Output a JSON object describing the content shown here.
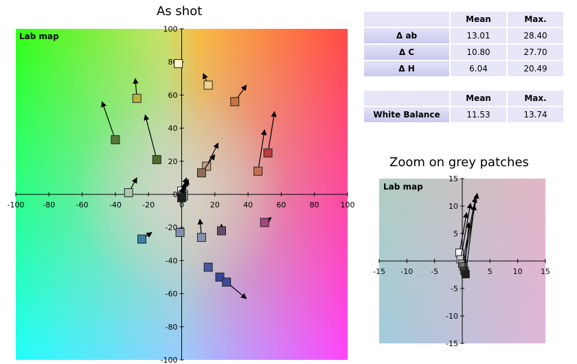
{
  "charts": {
    "main_title": "As shot",
    "zoom_title": "Zoom on grey patches"
  },
  "error_table": {
    "headers": [
      "",
      "Mean",
      "Max."
    ],
    "rows": [
      {
        "label": "Δ ab",
        "mean": "13.01",
        "max": "28.40"
      },
      {
        "label": "Δ C",
        "mean": "10.80",
        "max": "27.70"
      },
      {
        "label": "Δ H",
        "mean": "6.04",
        "max": "20.49"
      }
    ]
  },
  "wb_table": {
    "headers": [
      "",
      "Mean",
      "Max."
    ],
    "rows": [
      {
        "label": "White Balance",
        "mean": "11.53",
        "max": "13.74"
      }
    ]
  },
  "chart_data": [
    {
      "type": "scatter",
      "title": "As shot",
      "plot_label": "Lab map",
      "xlim": [
        -100,
        100
      ],
      "ylim": [
        -100,
        100
      ],
      "xticks": [
        -100,
        -80,
        -60,
        -40,
        -20,
        0,
        20,
        40,
        60,
        80,
        100
      ],
      "yticks": [
        -100,
        -80,
        -60,
        -40,
        -20,
        0,
        20,
        40,
        60,
        80,
        100
      ],
      "patches": [
        {
          "x": -2,
          "y": 79,
          "tx": -2,
          "ty": 79,
          "color": "#fff3c8"
        },
        {
          "x": 16,
          "y": 66,
          "tx": 13,
          "ty": 73,
          "color": "#f0d288"
        },
        {
          "x": -27,
          "y": 58,
          "tx": -28,
          "ty": 70,
          "color": "#b8b440"
        },
        {
          "x": 32,
          "y": 56,
          "tx": 39,
          "ty": 66,
          "color": "#c8743c"
        },
        {
          "x": -40,
          "y": 33,
          "tx": -48,
          "ty": 56,
          "color": "#587838"
        },
        {
          "x": -15,
          "y": 21,
          "tx": -22,
          "ty": 48,
          "color": "#4f6a2c"
        },
        {
          "x": 52,
          "y": 25,
          "tx": 56,
          "ty": 50,
          "color": "#b83e3c"
        },
        {
          "x": 46,
          "y": 14,
          "tx": 50,
          "ty": 39,
          "color": "#c47050"
        },
        {
          "x": 15,
          "y": 17,
          "tx": 22,
          "ty": 31,
          "color": "#c8a088"
        },
        {
          "x": 12,
          "y": 13,
          "tx": 20,
          "ty": 24,
          "color": "#906c54"
        },
        {
          "x": -32,
          "y": 1,
          "tx": -27,
          "ty": 10,
          "color": "#a8c8b0"
        },
        {
          "x": 0,
          "y": 2,
          "tx": 3,
          "ty": 10,
          "color": "#f8f8f8"
        },
        {
          "x": 1,
          "y": 0,
          "tx": 4,
          "ty": 9,
          "color": "#c8c8c8"
        },
        {
          "x": 1,
          "y": -1,
          "tx": 3,
          "ty": 8,
          "color": "#a0a0a0"
        },
        {
          "x": 0,
          "y": -1,
          "tx": 2,
          "ty": 7,
          "color": "#787878"
        },
        {
          "x": 0,
          "y": -2,
          "tx": 1,
          "ty": 5,
          "color": "#3c3c3c"
        },
        {
          "x": 0,
          "y": -2,
          "tx": 1,
          "ty": 4,
          "color": "#1e1e1e"
        },
        {
          "x": 50,
          "y": -17,
          "tx": 54,
          "ty": -14,
          "color": "#a84480"
        },
        {
          "x": -1,
          "y": -23,
          "tx": -1,
          "ty": -23,
          "color": "#8090b0"
        },
        {
          "x": 12,
          "y": -26,
          "tx": 11,
          "ty": -15,
          "color": "#8890b0"
        },
        {
          "x": 24,
          "y": -22,
          "tx": 24,
          "ty": -18,
          "color": "#684c6c"
        },
        {
          "x": -24,
          "y": -27,
          "tx": -18,
          "ty": -23,
          "color": "#3c80a8"
        },
        {
          "x": 16,
          "y": -44,
          "tx": 16,
          "ty": -44,
          "color": "#4858a0"
        },
        {
          "x": 23,
          "y": -50,
          "tx": 27,
          "ty": -53,
          "color": "#3c4898"
        },
        {
          "x": 27,
          "y": -53,
          "tx": 39,
          "ty": -63,
          "color": "#3c4898"
        }
      ]
    },
    {
      "type": "scatter",
      "title": "Zoom on grey patches",
      "plot_label": "Lab map",
      "xlim": [
        -15,
        15
      ],
      "ylim": [
        -15,
        15
      ],
      "xticks": [
        -15,
        -10,
        -5,
        0,
        5,
        10,
        15
      ],
      "yticks": [
        -15,
        -10,
        -5,
        0,
        5,
        10,
        15
      ],
      "patches": [
        {
          "x": -0.5,
          "y": 1.5,
          "tx": 0.8,
          "ty": 8.8,
          "color": "#f8f8f8"
        },
        {
          "x": -0.3,
          "y": 0.3,
          "tx": 1.5,
          "ty": 10.5,
          "color": "#c8c8c8"
        },
        {
          "x": 0.0,
          "y": -0.5,
          "tx": 2.4,
          "ty": 11.6,
          "color": "#a0a0a0"
        },
        {
          "x": 0.2,
          "y": -1.0,
          "tx": 2.7,
          "ty": 12.3,
          "color": "#787878"
        },
        {
          "x": 0.4,
          "y": -1.8,
          "tx": 1.2,
          "ty": 7.0,
          "color": "#3c3c3c"
        },
        {
          "x": 0.6,
          "y": -2.4,
          "tx": 2.2,
          "ty": 10.2,
          "color": "#1e1e1e"
        }
      ]
    }
  ]
}
